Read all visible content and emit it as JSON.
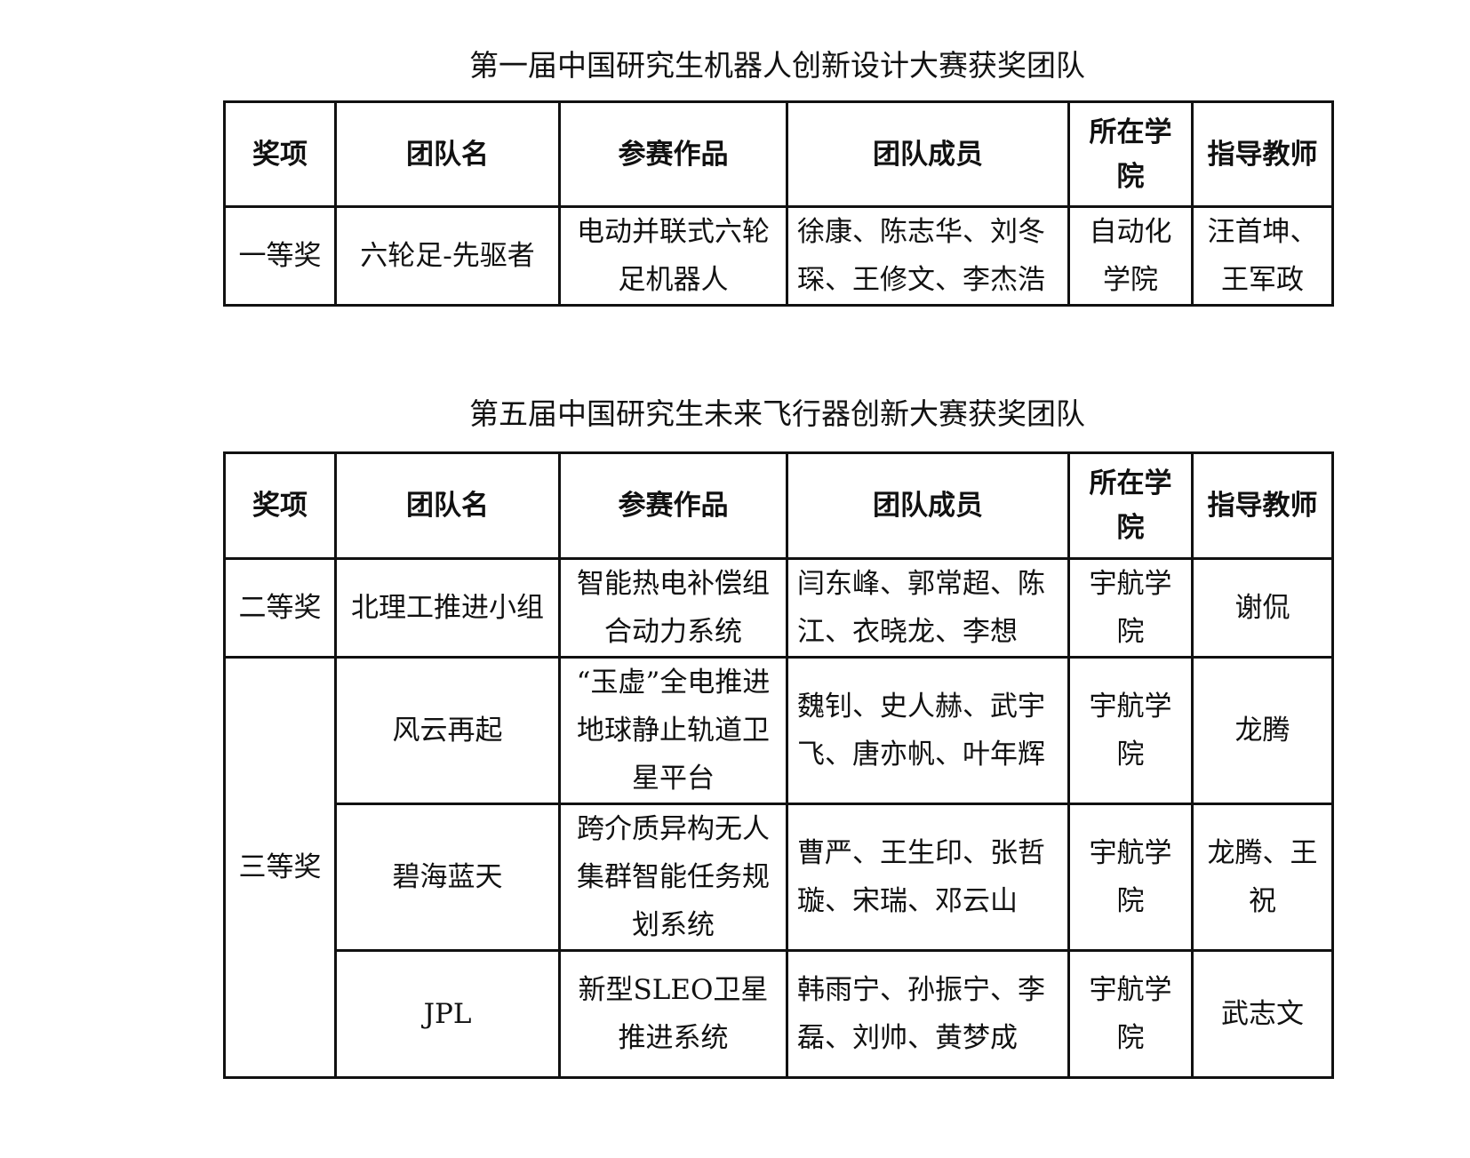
{
  "tables": [
    {
      "title": "第一届中国研究生机器人创新设计大赛获奖团队",
      "headers": [
        "奖项",
        "团队名",
        "参赛作品",
        "团队成员",
        "所在学院",
        "指导教师"
      ],
      "rows": [
        {
          "award": "一等奖",
          "team": "六轮足-先驱者",
          "work": "电动并联式六轮足机器人",
          "members": "徐康、陈志华、刘冬琛、王修文、李杰浩",
          "college": "自动化学院",
          "advisor": "汪首坤、王军政"
        }
      ]
    },
    {
      "title": "第五届中国研究生未来飞行器创新大赛获奖团队",
      "headers": [
        "奖项",
        "团队名",
        "参赛作品",
        "团队成员",
        "所在学院",
        "指导教师"
      ],
      "rows": [
        {
          "award": "二等奖",
          "team": "北理工推进小组",
          "work": "智能热电补偿组合动力系统",
          "members": "闫东峰、郭常超、陈江、衣晓龙、李想",
          "college": "宇航学院",
          "advisor": "谢侃"
        },
        {
          "award": "三等奖",
          "team": "风云再起",
          "work": "“玉虚”全电推进地球静止轨道卫星平台",
          "members": "魏钊、史人赫、武宇飞、唐亦帆、叶年辉",
          "college": "宇航学院",
          "advisor": "龙腾"
        },
        {
          "award": "三等奖",
          "team": "碧海蓝天",
          "work": "跨介质异构无人集群智能任务规划系统",
          "members": "曹严、王生印、张哲璇、宋瑞、邓云山",
          "college": "宇航学院",
          "advisor": "龙腾、王祝"
        },
        {
          "award": "三等奖",
          "team": "JPL",
          "work": "新型SLEO卫星推进系统",
          "members": "韩雨宁、孙振宁、李磊、刘帅、黄梦成",
          "college": "宇航学院",
          "advisor": "武志文"
        }
      ]
    }
  ]
}
